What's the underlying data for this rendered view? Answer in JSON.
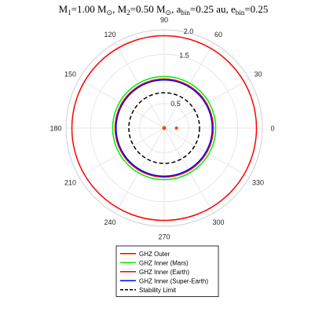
{
  "chart_data": {
    "type": "polar",
    "title": "M₁=1.00 M⊙, M₂=0.50 M⊙, aₕᵢₙ=0.25 au, eₕᵢₙ=0.25",
    "title_parts": {
      "m1": "M",
      "m1_sub": "1",
      "m1_val": "=1.00 M",
      "m1_sub2": "⊙",
      "m2": ", M",
      "m2_sub": "2",
      "m2_val": "=0.50 M",
      "m2_sub2": "⊙",
      "a": ", a",
      "a_sub": "bin",
      "a_val": "=0.25 au",
      "e": ", e",
      "e_sub": "bin",
      "e_val": "=0.25"
    },
    "r_max": 2.0,
    "r_ticks": [
      0.5,
      1.0,
      1.5,
      2.0
    ],
    "r_tick_labels": [
      "0.5",
      "",
      "1.5",
      "2.0"
    ],
    "theta_ticks_deg": [
      0,
      30,
      60,
      90,
      120,
      150,
      180,
      210,
      240,
      270,
      300,
      330
    ],
    "theta_tick_labels": [
      "0",
      "30",
      "60",
      "90",
      "120",
      "150",
      "180",
      "210",
      "240",
      "270",
      "300",
      "330"
    ],
    "grid": true,
    "legend_position": "bottom-center",
    "series": [
      {
        "name": "GHZ Outer",
        "color": "#ff0000",
        "style": "solid",
        "radius": 1.88
      },
      {
        "name": "GHZ Inner (Mars)",
        "color": "#00ee00",
        "style": "solid",
        "radius": 1.05
      },
      {
        "name": "GHZ Inner (Earth)",
        "color": "#ff0000",
        "style": "solid",
        "radius": 1.0
      },
      {
        "name": "GHZ Inner (Super-Earth)",
        "color": "#0000ff",
        "style": "solid",
        "radius": 0.98
      },
      {
        "name": "Stability Limit",
        "color": "#000000",
        "style": "dashed",
        "radius": 0.72
      }
    ],
    "stars": [
      {
        "x": 0.0,
        "y": 0.0,
        "color": "#ff4400"
      },
      {
        "x": 0.25,
        "y": 0.0,
        "color": "#ff4400"
      }
    ]
  }
}
